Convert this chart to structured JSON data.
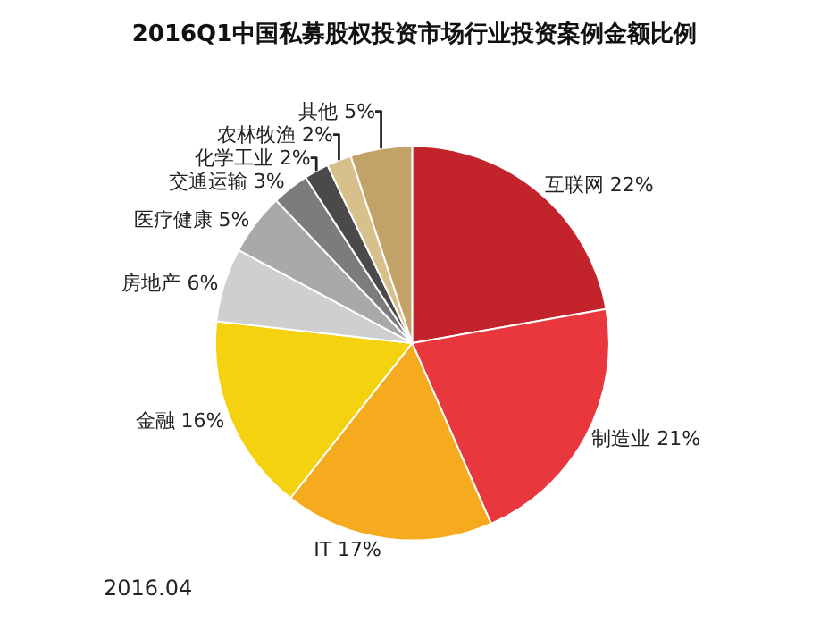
{
  "chart_data": {
    "type": "pie",
    "title": "2016Q1中国私募股权投资市场行业投资案例金额比例",
    "categories": [
      "互联网",
      "制造业",
      "IT",
      "金融",
      "房地产",
      "医疗健康",
      "交通运输",
      "化学工业",
      "农林牧渔",
      "其他"
    ],
    "values": [
      22,
      21,
      17,
      16,
      6,
      5,
      3,
      2,
      2,
      5
    ],
    "value_labels": [
      "22%",
      "21%",
      "17%",
      "16%",
      "6%",
      "5%",
      "3%",
      "2%",
      "2%",
      "5%"
    ],
    "colors": [
      "#c3242b",
      "#e8383d",
      "#f6ab1f",
      "#f5d210",
      "#cfcfcf",
      "#a9a9a9",
      "#7c7c7c",
      "#4a4a4a",
      "#d8c08c",
      "#c2a266"
    ],
    "legend": false,
    "annotations": [
      "2016.04"
    ]
  }
}
